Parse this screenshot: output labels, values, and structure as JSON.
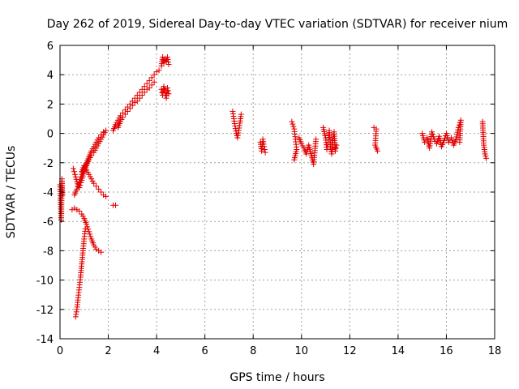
{
  "chart_data": {
    "type": "scatter",
    "title": "Day 262 of 2019, Sidereal Day-to-day VTEC variation (SDTVAR) for receiver nium",
    "xlabel": "GPS time / hours",
    "ylabel": "SDTVAR / TECUs",
    "xlim": [
      0,
      18
    ],
    "ylim": [
      -14,
      6
    ],
    "xticks": [
      "0",
      "2",
      "4",
      "6",
      "8",
      "10",
      "12",
      "14",
      "16",
      "18"
    ],
    "yticks": [
      "6",
      "4",
      "2",
      "0",
      "-2",
      "-4",
      "-6",
      "-8",
      "-10",
      "-12",
      "-14"
    ],
    "grid": true,
    "marker": "plus",
    "color": "#e00000",
    "series": [
      {
        "name": "SDTVAR",
        "segments": [
          [
            [
              0.0,
              -3.5
            ],
            [
              0.05,
              -5.9
            ],
            [
              0.08,
              -3.1
            ],
            [
              0.1,
              -4.2
            ]
          ],
          [
            [
              0.55,
              -2.4
            ],
            [
              0.62,
              -2.8
            ],
            [
              0.7,
              -3.3
            ],
            [
              0.8,
              -3.7
            ],
            [
              0.9,
              -3.2
            ],
            [
              1.0,
              -2.6
            ],
            [
              1.1,
              -2.2
            ],
            [
              1.2,
              -1.8
            ],
            [
              1.3,
              -1.5
            ],
            [
              1.4,
              -1.3
            ],
            [
              1.5,
              -1.0
            ],
            [
              1.6,
              -0.7
            ],
            [
              1.7,
              -0.4
            ],
            [
              1.8,
              -0.1
            ],
            [
              1.9,
              0.2
            ]
          ],
          [
            [
              0.6,
              -4.2
            ],
            [
              0.7,
              -3.8
            ],
            [
              0.8,
              -3.3
            ],
            [
              0.9,
              -2.8
            ],
            [
              1.0,
              -2.4
            ],
            [
              1.1,
              -2.0
            ],
            [
              1.2,
              -1.6
            ],
            [
              1.3,
              -1.2
            ],
            [
              1.4,
              -0.9
            ],
            [
              1.5,
              -0.6
            ],
            [
              1.6,
              -0.3
            ],
            [
              1.7,
              -0.1
            ],
            [
              1.8,
              0.1
            ]
          ],
          [
            [
              0.9,
              -2.6
            ],
            [
              1.0,
              -2.2
            ],
            [
              1.1,
              -2.5
            ],
            [
              1.2,
              -2.8
            ],
            [
              1.3,
              -3.1
            ],
            [
              1.4,
              -3.4
            ],
            [
              1.5,
              -3.6
            ],
            [
              1.6,
              -3.8
            ],
            [
              1.7,
              -4.0
            ],
            [
              1.8,
              -4.2
            ],
            [
              1.9,
              -4.3
            ]
          ],
          [
            [
              0.5,
              -5.2
            ],
            [
              0.6,
              -5.1
            ],
            [
              0.7,
              -5.2
            ],
            [
              0.8,
              -5.3
            ],
            [
              0.9,
              -5.5
            ],
            [
              1.0,
              -5.8
            ],
            [
              1.1,
              -6.2
            ],
            [
              1.2,
              -6.7
            ],
            [
              1.3,
              -7.2
            ],
            [
              1.4,
              -7.6
            ],
            [
              1.5,
              -7.9
            ],
            [
              1.6,
              -8.0
            ],
            [
              1.7,
              -8.1
            ]
          ],
          [
            [
              0.65,
              -12.5
            ],
            [
              0.7,
              -12.0
            ],
            [
              0.75,
              -11.2
            ],
            [
              0.8,
              -10.5
            ],
            [
              0.85,
              -9.8
            ],
            [
              0.9,
              -8.9
            ],
            [
              0.95,
              -8.0
            ],
            [
              1.0,
              -7.2
            ],
            [
              1.05,
              -6.5
            ]
          ],
          [
            [
              2.2,
              -4.9
            ],
            [
              2.3,
              -4.9
            ]
          ],
          [
            [
              2.2,
              0.2
            ],
            [
              2.3,
              0.6
            ],
            [
              2.4,
              0.9
            ],
            [
              2.5,
              1.2
            ],
            [
              2.6,
              1.4
            ],
            [
              2.7,
              1.6
            ],
            [
              2.8,
              1.8
            ],
            [
              2.9,
              2.0
            ],
            [
              3.0,
              2.2
            ],
            [
              3.1,
              2.4
            ],
            [
              3.2,
              2.6
            ],
            [
              3.3,
              2.8
            ],
            [
              3.4,
              3.0
            ],
            [
              3.5,
              3.2
            ],
            [
              3.6,
              3.4
            ],
            [
              3.7,
              3.6
            ],
            [
              3.8,
              3.8
            ],
            [
              3.9,
              4.0
            ],
            [
              4.0,
              4.2
            ],
            [
              4.1,
              4.3
            ]
          ],
          [
            [
              2.4,
              0.4
            ],
            [
              2.5,
              0.8
            ],
            [
              2.6,
              1.1
            ],
            [
              2.7,
              1.3
            ],
            [
              2.8,
              1.5
            ],
            [
              2.9,
              1.7
            ],
            [
              3.0,
              1.9
            ],
            [
              3.1,
              2.1
            ],
            [
              3.2,
              2.2
            ],
            [
              3.3,
              2.4
            ],
            [
              3.4,
              2.6
            ],
            [
              3.5,
              2.8
            ],
            [
              3.6,
              3.0
            ],
            [
              3.7,
              3.1
            ],
            [
              3.8,
              3.3
            ],
            [
              3.9,
              3.5
            ]
          ],
          [
            [
              4.2,
              4.6
            ],
            [
              4.25,
              5.2
            ],
            [
              4.3,
              4.8
            ],
            [
              4.35,
              5.1
            ],
            [
              4.4,
              4.9
            ],
            [
              4.45,
              5.2
            ],
            [
              4.5,
              4.7
            ]
          ],
          [
            [
              4.2,
              3.0
            ],
            [
              4.25,
              2.6
            ],
            [
              4.3,
              3.2
            ],
            [
              4.35,
              2.8
            ],
            [
              4.4,
              2.4
            ],
            [
              4.45,
              3.1
            ],
            [
              4.5,
              2.7
            ]
          ],
          [
            [
              7.15,
              1.5
            ],
            [
              7.2,
              1.0
            ],
            [
              7.25,
              0.5
            ],
            [
              7.3,
              0.0
            ],
            [
              7.35,
              -0.3
            ],
            [
              7.4,
              0.2
            ],
            [
              7.45,
              0.7
            ],
            [
              7.5,
              1.3
            ]
          ],
          [
            [
              8.3,
              -0.6
            ],
            [
              8.35,
              -1.2
            ],
            [
              8.4,
              -0.4
            ],
            [
              8.45,
              -0.9
            ],
            [
              8.5,
              -1.3
            ]
          ],
          [
            [
              9.6,
              0.8
            ],
            [
              9.7,
              0.3
            ],
            [
              9.75,
              -0.4
            ],
            [
              9.8,
              -1.1
            ],
            [
              9.7,
              -1.8
            ]
          ],
          [
            [
              9.9,
              -0.3
            ],
            [
              10.0,
              -0.7
            ],
            [
              10.1,
              -1.0
            ],
            [
              10.2,
              -1.4
            ],
            [
              10.3,
              -0.8
            ],
            [
              10.5,
              -2.1
            ],
            [
              10.6,
              -0.4
            ]
          ],
          [
            [
              10.9,
              0.4
            ],
            [
              11.0,
              -0.3
            ],
            [
              11.05,
              -1.1
            ],
            [
              11.1,
              -0.6
            ],
            [
              11.15,
              0.2
            ],
            [
              11.2,
              -0.9
            ],
            [
              11.25,
              -1.4
            ],
            [
              11.3,
              -0.5
            ],
            [
              11.35,
              0.1
            ],
            [
              11.4,
              -1.2
            ],
            [
              11.45,
              -0.8
            ]
          ],
          [
            [
              13.0,
              0.4
            ],
            [
              13.1,
              0.3
            ],
            [
              13.05,
              -0.8
            ],
            [
              13.15,
              -1.2
            ]
          ],
          [
            [
              15.0,
              0.0
            ],
            [
              15.1,
              -0.6
            ],
            [
              15.2,
              -0.3
            ],
            [
              15.3,
              -1.0
            ],
            [
              15.4,
              0.1
            ],
            [
              15.5,
              -0.4
            ],
            [
              15.6,
              -0.7
            ],
            [
              15.7,
              -0.2
            ],
            [
              15.8,
              -0.9
            ],
            [
              15.9,
              -0.5
            ],
            [
              16.0,
              0.0
            ],
            [
              16.1,
              -0.6
            ],
            [
              16.2,
              -0.3
            ],
            [
              16.3,
              -0.8
            ],
            [
              16.4,
              -0.4
            ],
            [
              16.5,
              0.4
            ],
            [
              16.6,
              0.9
            ],
            [
              16.55,
              -0.6
            ]
          ],
          [
            [
              17.5,
              0.8
            ],
            [
              17.55,
              -0.8
            ],
            [
              17.6,
              -1.4
            ],
            [
              17.65,
              -1.7
            ]
          ]
        ]
      }
    ]
  }
}
